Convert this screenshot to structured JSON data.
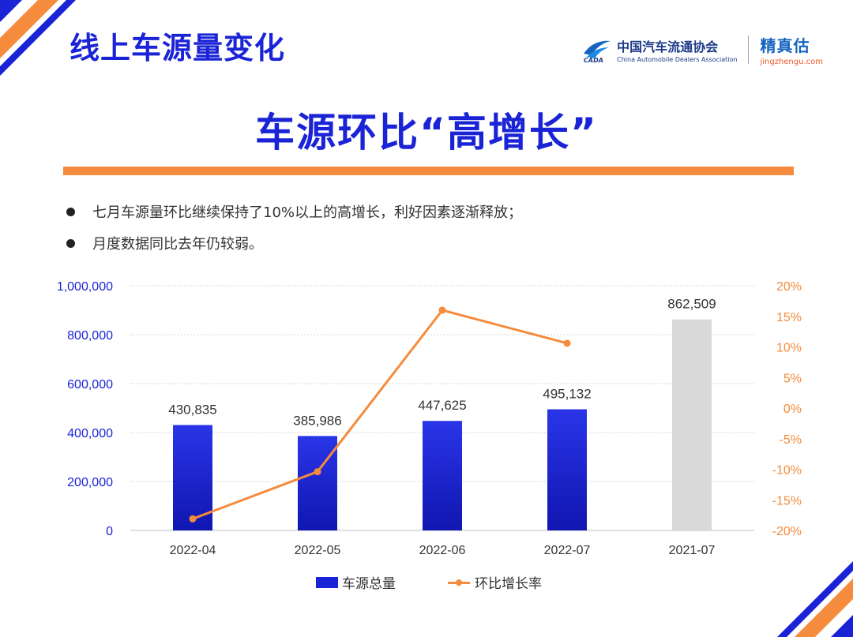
{
  "header": {
    "title": "线上车源量变化",
    "headline": "车源环比“高增长”"
  },
  "logos": {
    "cada_name_cn": "中国汽车流通协会",
    "cada_name_en": "China Automobile Dealers Association",
    "cada_mark": "CADA",
    "jzg_name": "精真估",
    "jzg_url": "jingzhengu.com"
  },
  "bullets": [
    "七月车源量环比继续保持了10%以上的高增长，利好因素逐渐释放；",
    "月度数据同比去年仍较弱。"
  ],
  "colors": {
    "bar": "#1a24d6",
    "bar_highlight": "#d9d9d9",
    "line": "#f58b3c",
    "title": "#1a24d6",
    "accent_orange": "#f58b3c"
  },
  "chart_data": {
    "type": "bar",
    "title": "",
    "xlabel": "",
    "ylabel": "",
    "categories": [
      "2022-04",
      "2022-05",
      "2022-06",
      "2022-07",
      "2021-07"
    ],
    "series": [
      {
        "name": "车源总量",
        "type": "bar",
        "axis": "left",
        "values": [
          430835,
          385986,
          447625,
          495132,
          862509
        ],
        "value_labels": [
          "430,835",
          "385,986",
          "447,625",
          "495,132",
          "862,509"
        ],
        "bar_colors": [
          "#1a24d6",
          "#1a24d6",
          "#1a24d6",
          "#1a24d6",
          "#d9d9d9"
        ]
      },
      {
        "name": "环比增长率",
        "type": "line",
        "axis": "right",
        "values": [
          -18.1,
          -10.4,
          16.0,
          10.6,
          null
        ]
      }
    ],
    "ylim_left": [
      0,
      1000000
    ],
    "ylim_right": [
      -20,
      20
    ],
    "yticks_left": [
      "0",
      "200,000",
      "400,000",
      "600,000",
      "800,000",
      "1,000,000"
    ],
    "yticks_right": [
      "-20%",
      "-15%",
      "-10%",
      "-5%",
      "0%",
      "5%",
      "10%",
      "15%",
      "20%"
    ],
    "grid": true,
    "legend_position": "bottom"
  }
}
